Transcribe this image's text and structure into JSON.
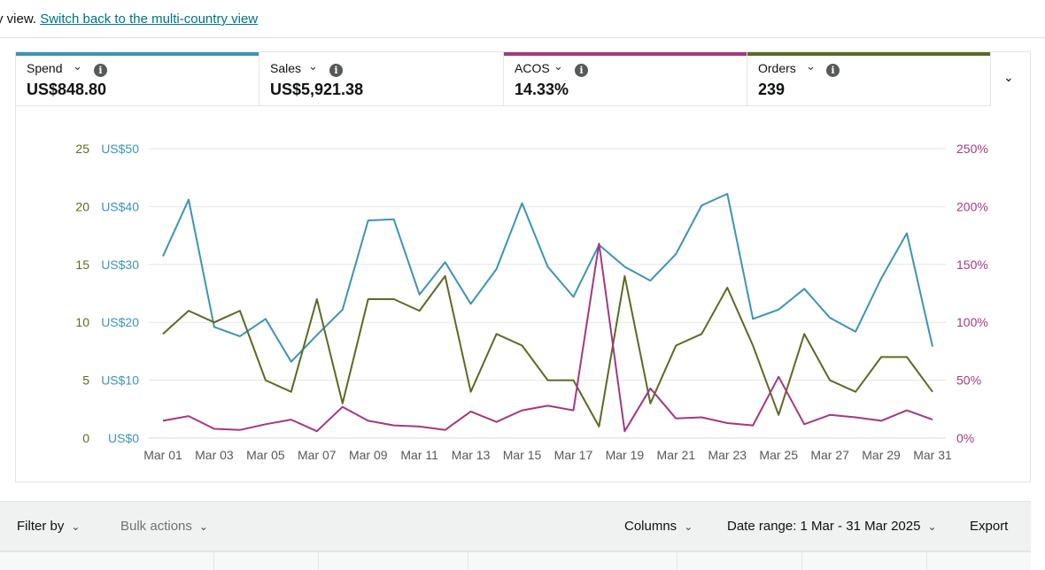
{
  "header": {
    "prefix_text": "y view.",
    "switch_link": "Switch back to the multi-country view"
  },
  "metrics": [
    {
      "label": "Spend",
      "value": "US$848.80",
      "color": "#3d94b4"
    },
    {
      "label": "Sales",
      "value": "US$5,921.38",
      "color": null
    },
    {
      "label": "ACOS",
      "value": "14.33%",
      "color": "#a4387f"
    },
    {
      "label": "Orders",
      "value": "239",
      "color": "#5b6b22"
    }
  ],
  "chart_data": {
    "type": "line",
    "x": [
      "Mar 01",
      "Mar 02",
      "Mar 03",
      "Mar 04",
      "Mar 05",
      "Mar 06",
      "Mar 07",
      "Mar 08",
      "Mar 09",
      "Mar 10",
      "Mar 11",
      "Mar 12",
      "Mar 13",
      "Mar 14",
      "Mar 15",
      "Mar 16",
      "Mar 17",
      "Mar 18",
      "Mar 19",
      "Mar 20",
      "Mar 21",
      "Mar 22",
      "Mar 23",
      "Mar 24",
      "Mar 25",
      "Mar 26",
      "Mar 27",
      "Mar 28",
      "Mar 29",
      "Mar 30",
      "Mar 31"
    ],
    "x_tick_labels": [
      "Mar 01",
      "Mar 03",
      "Mar 05",
      "Mar 07",
      "Mar 09",
      "Mar 11",
      "Mar 13",
      "Mar 15",
      "Mar 17",
      "Mar 19",
      "Mar 21",
      "Mar 23",
      "Mar 25",
      "Mar 27",
      "Mar 29",
      "Mar 31"
    ],
    "axes": {
      "orders": {
        "ticks": [
          "0",
          "5",
          "10",
          "15",
          "20",
          "25"
        ],
        "range": [
          0,
          25
        ],
        "color": "#5b6b22"
      },
      "spend": {
        "ticks": [
          "US$0",
          "US$10",
          "US$20",
          "US$30",
          "US$40",
          "US$50"
        ],
        "range": [
          0,
          50
        ],
        "color": "#3d94b4"
      },
      "acos": {
        "ticks": [
          "0%",
          "50%",
          "100%",
          "150%",
          "200%",
          "250%"
        ],
        "range": [
          0,
          250
        ],
        "color": "#a4387f"
      }
    },
    "grid": true,
    "series": [
      {
        "name": "Spend",
        "axis": "spend",
        "color": "#3d94b4",
        "values": [
          31.4,
          41.2,
          19.2,
          17.6,
          20.6,
          13.2,
          17.8,
          22.2,
          37.6,
          37.8,
          24.8,
          30.4,
          23.2,
          29.2,
          40.6,
          29.6,
          24.4,
          33.4,
          29.6,
          27.2,
          31.8,
          40.2,
          42.2,
          20.6,
          22.2,
          25.8,
          20.8,
          18.4,
          27.6,
          35.4,
          15.8
        ]
      },
      {
        "name": "Orders",
        "axis": "orders",
        "color": "#5b6b22",
        "values": [
          9,
          11,
          10,
          11,
          5,
          4,
          12,
          3,
          12,
          12,
          11,
          14,
          4,
          9,
          8,
          5,
          5,
          1,
          14,
          3,
          8,
          9,
          13,
          8,
          2,
          9,
          5,
          4,
          7,
          7,
          4
        ]
      },
      {
        "name": "ACOS",
        "axis": "acos",
        "color": "#a4387f",
        "values": [
          15,
          19,
          8,
          7,
          12,
          16,
          6,
          27,
          15,
          11,
          10,
          7,
          23,
          14,
          24,
          28,
          24,
          168,
          6,
          43,
          17,
          18,
          13,
          11,
          53,
          12,
          20,
          18,
          15,
          24,
          16
        ]
      }
    ]
  },
  "toolbar": {
    "filter_by": "Filter by",
    "bulk_actions": "Bulk actions",
    "columns": "Columns",
    "date_range": "Date range: 1 Mar - 31 Mar 2025",
    "export": "Export"
  }
}
